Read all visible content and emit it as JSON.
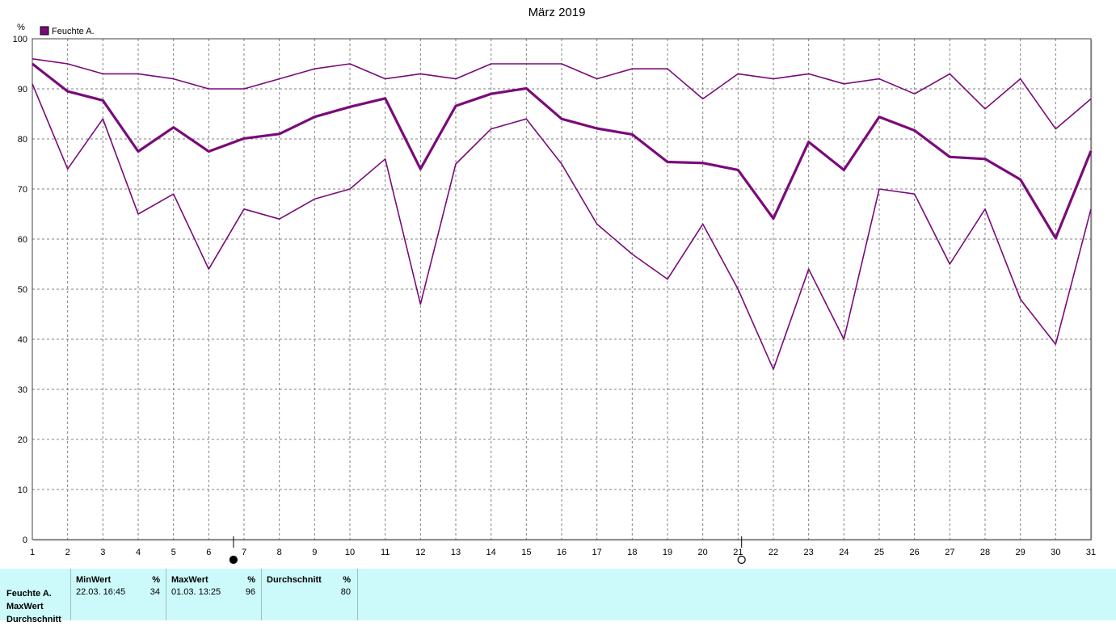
{
  "chart_data": {
    "type": "line",
    "title": "März 2019",
    "ylabel": "%",
    "ylim": [
      0,
      100
    ],
    "yticks": [
      "0",
      "10",
      "20",
      "30",
      "40",
      "50",
      "60",
      "70",
      "80",
      "90",
      "100"
    ],
    "x": [
      "1",
      "2",
      "3",
      "4",
      "5",
      "6",
      "7",
      "8",
      "9",
      "10",
      "11",
      "12",
      "13",
      "14",
      "15",
      "16",
      "17",
      "18",
      "19",
      "20",
      "21",
      "22",
      "23",
      "24",
      "25",
      "26",
      "27",
      "28",
      "29",
      "30",
      "31"
    ],
    "grid": true,
    "legend": {
      "label": "Feuchte A.",
      "placement": "top-left"
    },
    "color": "#7a0a7a",
    "series": [
      {
        "values": [
          96,
          95,
          93,
          93,
          92,
          90,
          90,
          92,
          94,
          95,
          92,
          93,
          92,
          95,
          95,
          95,
          92,
          94,
          94,
          88,
          93,
          92,
          93,
          91,
          92,
          89,
          93,
          86,
          92,
          82,
          88
        ]
      },
      {
        "values": [
          95,
          89.5,
          87.7,
          77.5,
          82.3,
          77.5,
          80.1,
          81,
          84.4,
          86.4,
          88.1,
          74,
          86.6,
          89,
          90.1,
          84,
          82.1,
          80.9,
          75.4,
          75.2,
          73.8,
          64.1,
          79.4,
          73.8,
          84.4,
          81.7,
          76.4,
          76,
          71.9,
          60.2,
          77.6
        ]
      },
      {
        "values": [
          91,
          74,
          84,
          65,
          69,
          54,
          66,
          64,
          68,
          70,
          76,
          47,
          75,
          82,
          84,
          75,
          63,
          57,
          52,
          63,
          50,
          34,
          54,
          40,
          70,
          69,
          55,
          66,
          48,
          39,
          66
        ]
      }
    ],
    "markers": [
      {
        "symbol": "filled-circle",
        "x": 6.7
      },
      {
        "symbol": "open-circle",
        "x": 21.1
      }
    ]
  },
  "stats": {
    "row_labels": [
      "Feuchte A.",
      "MaxWert",
      "Durchschnitt"
    ],
    "columns": [
      {
        "header": "MinWert",
        "unit": "%",
        "left": "22.03.  16:45",
        "right": "34"
      },
      {
        "header": "MaxWert",
        "unit": "%",
        "left": "01.03.  13:25",
        "right": "96"
      },
      {
        "header": "Durchschnitt",
        "unit": "%",
        "left": "",
        "right": "80"
      }
    ]
  }
}
